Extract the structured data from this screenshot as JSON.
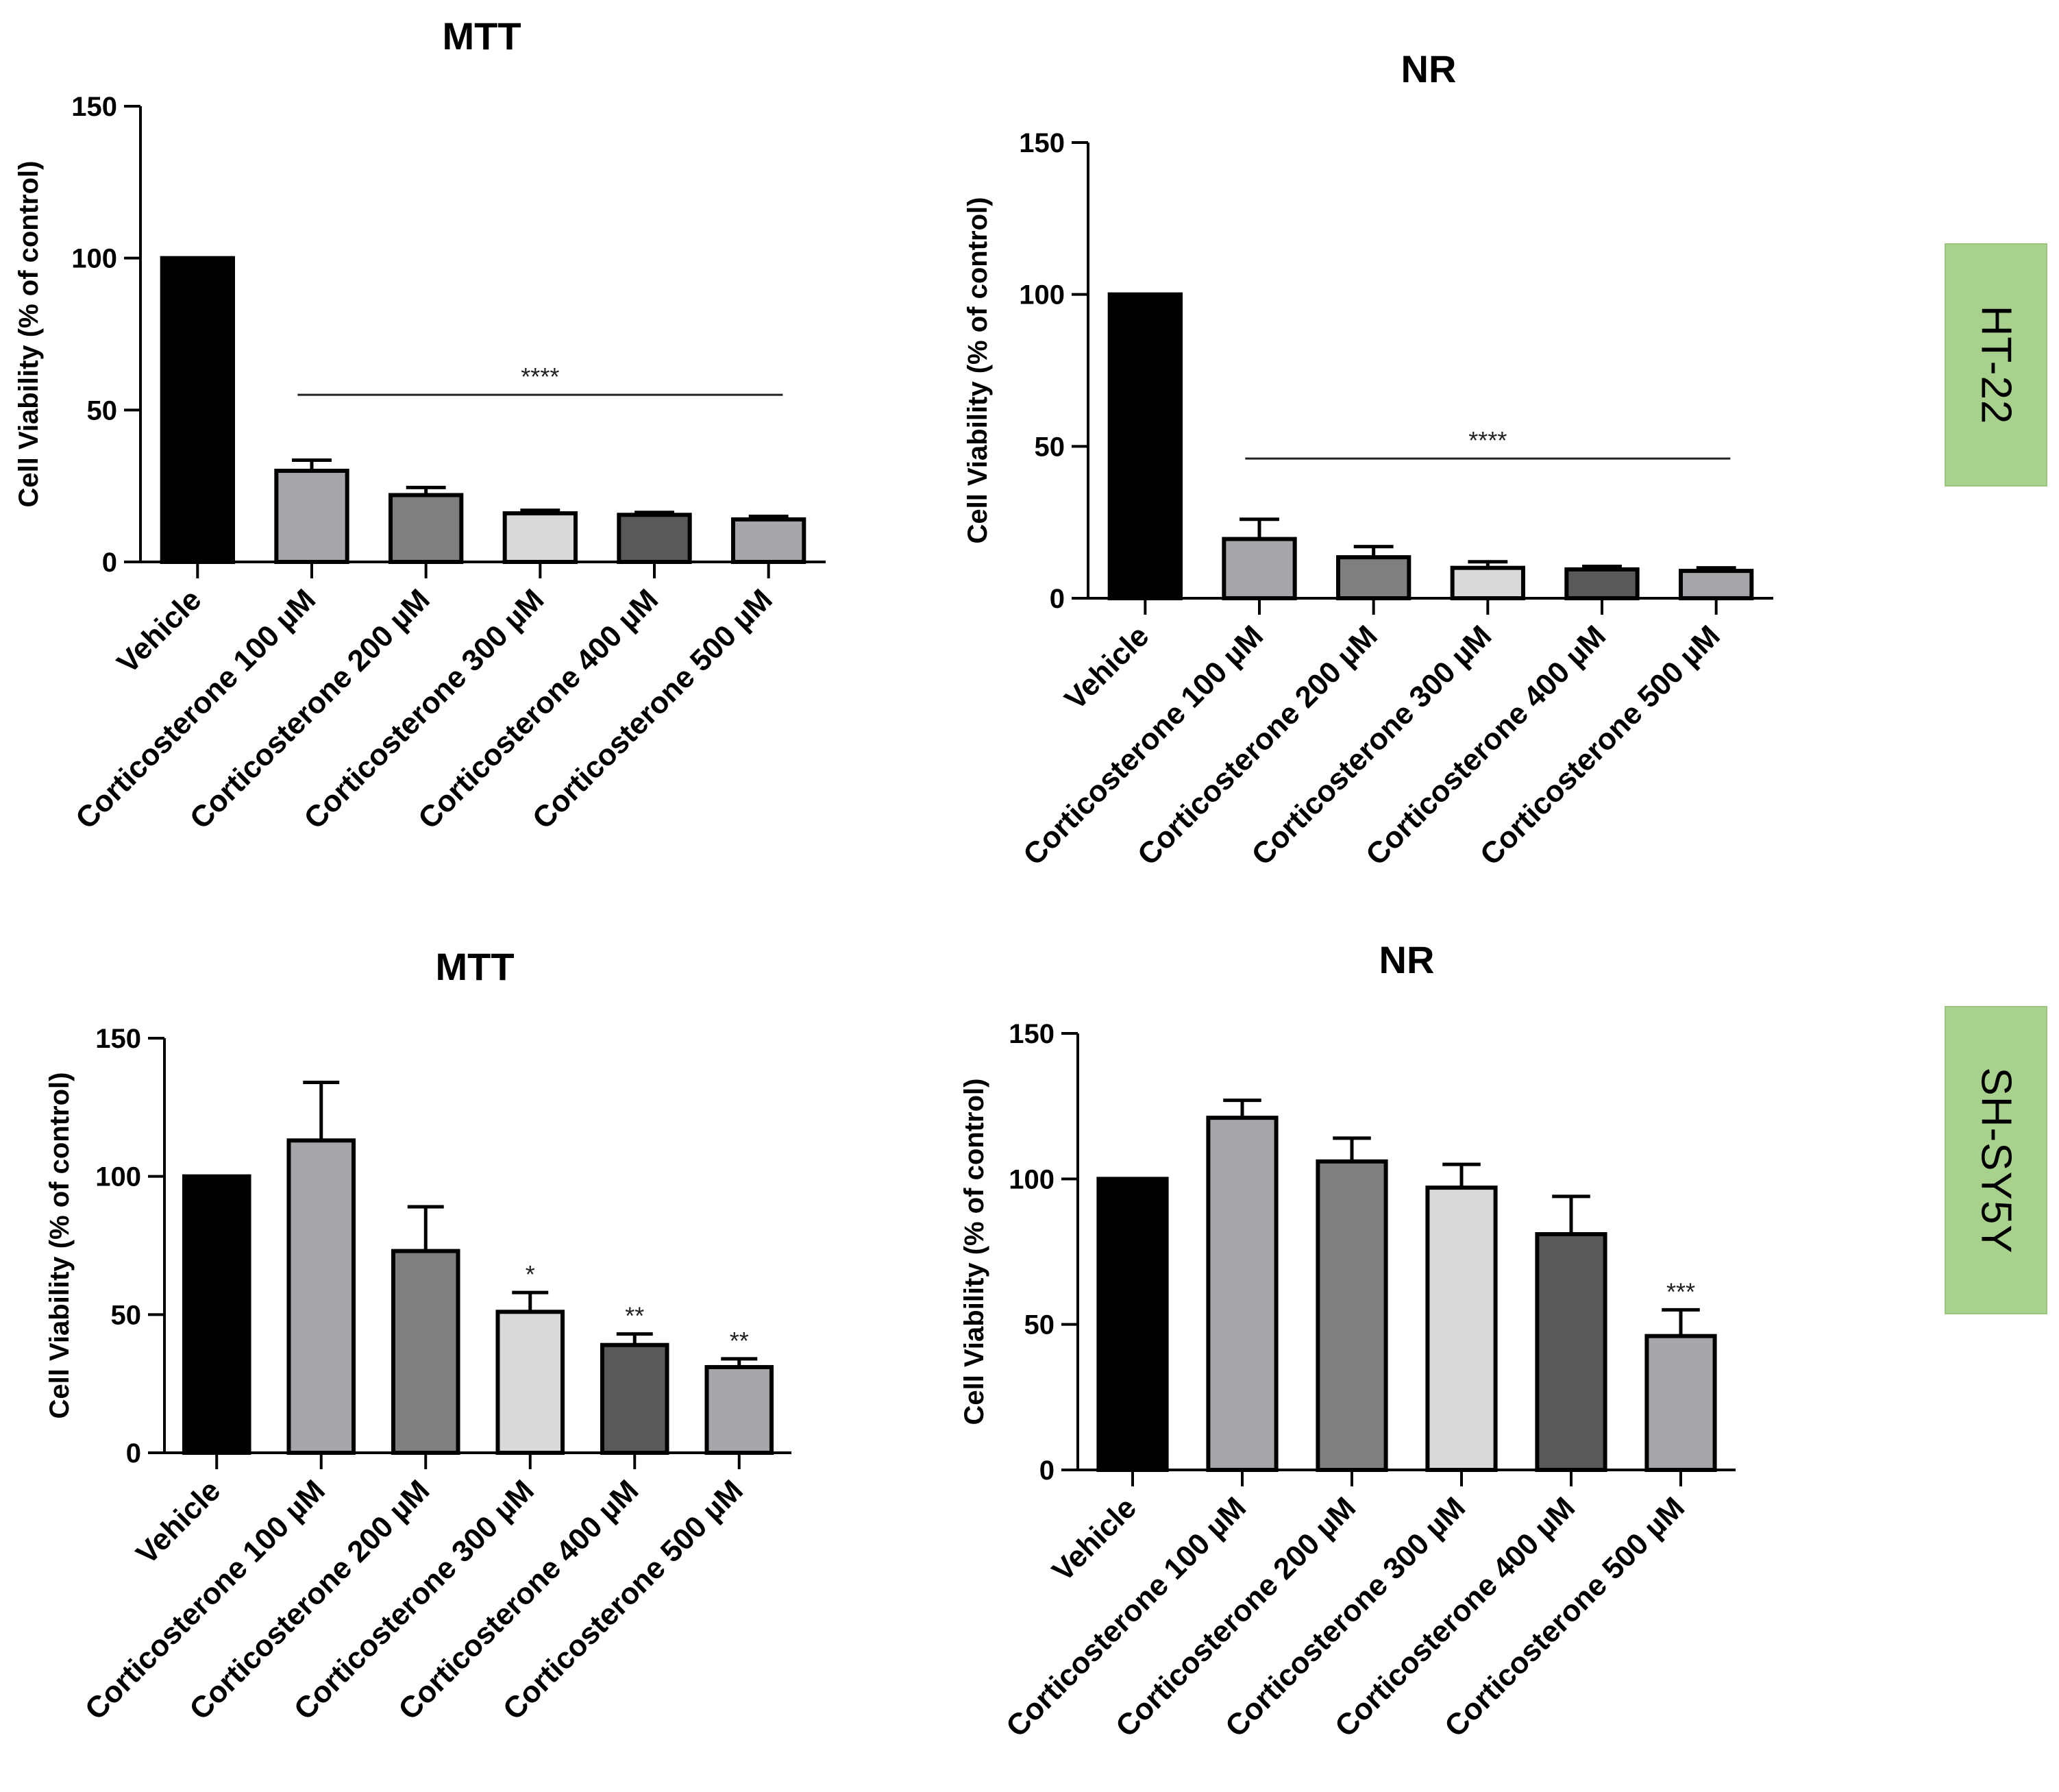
{
  "cell_lines": [
    "HT-22",
    "SH-SY5Y"
  ],
  "chart_data": [
    {
      "type": "bar",
      "id": "ht22-mtt",
      "title": "MTT",
      "cell_line": "HT-22",
      "ylabel": "Cell Viability (% of control)",
      "xlabel": "",
      "ylim": [
        0,
        150
      ],
      "yticks": [
        0,
        50,
        100,
        150
      ],
      "categories": [
        "Vehicle",
        "Corticosterone 100 µM",
        "Corticosterone 200 µM",
        "Corticosterone 300 µM",
        "Corticosterone 400 µM",
        "Corticosterone 500 µM"
      ],
      "values": [
        100,
        30,
        22,
        16,
        15.5,
        14
      ],
      "errors": [
        0,
        3.5,
        2.5,
        1,
        0.8,
        1
      ],
      "bar_colors": [
        "#000000",
        "#a6a6aa",
        "#7f7f7f",
        "#d9d9d9",
        "#595959",
        "#a6a6aa"
      ],
      "significance": {
        "type": "line",
        "text": "****",
        "from_index": 1,
        "to_index": 5,
        "y": 55
      }
    },
    {
      "type": "bar",
      "id": "ht22-nr",
      "title": "NR",
      "cell_line": "HT-22",
      "ylabel": "Cell Viability (% of control)",
      "xlabel": "",
      "ylim": [
        0,
        150
      ],
      "yticks": [
        0,
        50,
        100,
        150
      ],
      "categories": [
        "Vehicle",
        "Corticosterone 100 µM",
        "Corticosterone 200 µM",
        "Corticosterone 300 µM",
        "Corticosterone 400 µM",
        "Corticosterone 500 µM"
      ],
      "values": [
        100,
        19.5,
        13.5,
        10,
        9.5,
        9
      ],
      "errors": [
        0,
        6.5,
        3.5,
        2,
        1,
        1
      ],
      "bar_colors": [
        "#000000",
        "#a6a6aa",
        "#7f7f7f",
        "#d9d9d9",
        "#595959",
        "#a6a6aa"
      ],
      "significance": {
        "type": "line",
        "text": "****",
        "from_index": 1,
        "to_index": 5,
        "y": 46
      }
    },
    {
      "type": "bar",
      "id": "shsy5y-mtt",
      "title": "MTT",
      "cell_line": "SH-SY5Y",
      "ylabel": "Cell Viability (%  of control)",
      "xlabel": "",
      "ylim": [
        0,
        150
      ],
      "yticks": [
        0,
        50,
        100,
        150
      ],
      "categories": [
        "Vehicle",
        "Corticosterone 100 µM",
        "Corticosterone 200 µM",
        "Corticosterone 300 µM",
        "Corticosterone 400 µM",
        "Corticosterone 500 µM"
      ],
      "values": [
        100,
        113,
        73,
        51,
        39,
        31
      ],
      "errors": [
        0,
        21,
        16,
        7,
        4,
        3
      ],
      "bar_colors": [
        "#000000",
        "#a6a6aa",
        "#7f7f7f",
        "#d9d9d9",
        "#595959",
        "#a6a6aa"
      ],
      "significance": {
        "type": "stars",
        "labels": [
          "",
          "",
          "",
          "*",
          "**",
          "**"
        ]
      }
    },
    {
      "type": "bar",
      "id": "shsy5y-nr",
      "title": "NR",
      "cell_line": "SH-SY5Y",
      "ylabel": "Cell Viability (% of control)",
      "xlabel": "",
      "ylim": [
        0,
        150
      ],
      "yticks": [
        0,
        50,
        100,
        150
      ],
      "categories": [
        "Vehicle",
        "Corticosterone 100 µM",
        "Corticosterone 200 µM",
        "Corticosterone 300 µM",
        "Corticosterone 400 µM",
        "Corticosterone 500 µM"
      ],
      "values": [
        100,
        121,
        106,
        97,
        81,
        46
      ],
      "errors": [
        0,
        6,
        8,
        8,
        13,
        9
      ],
      "bar_colors": [
        "#000000",
        "#a6a6aa",
        "#7f7f7f",
        "#d9d9d9",
        "#595959",
        "#a6a6aa"
      ],
      "significance": {
        "type": "stars",
        "labels": [
          "",
          "",
          "",
          "",
          "",
          "***"
        ]
      }
    }
  ]
}
